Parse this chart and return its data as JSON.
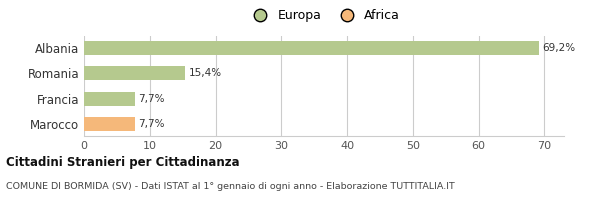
{
  "categories": [
    "Albania",
    "Romania",
    "Francia",
    "Marocco"
  ],
  "values": [
    69.2,
    15.4,
    7.7,
    7.7
  ],
  "labels": [
    "69,2%",
    "15,4%",
    "7,7%",
    "7,7%"
  ],
  "bar_colors": [
    "#b5c98e",
    "#b5c98e",
    "#b5c98e",
    "#f5b87a"
  ],
  "legend": [
    {
      "label": "Europa",
      "color": "#b5c98e"
    },
    {
      "label": "Africa",
      "color": "#f5b87a"
    }
  ],
  "xlim": [
    0,
    73
  ],
  "xticks": [
    0,
    10,
    20,
    30,
    40,
    50,
    60,
    70
  ],
  "title_bold": "Cittadini Stranieri per Cittadinanza",
  "subtitle": "COMUNE DI BORMIDA (SV) - Dati ISTAT al 1° gennaio di ogni anno - Elaborazione TUTTITALIA.IT",
  "background_color": "#ffffff",
  "grid_color": "#cccccc"
}
